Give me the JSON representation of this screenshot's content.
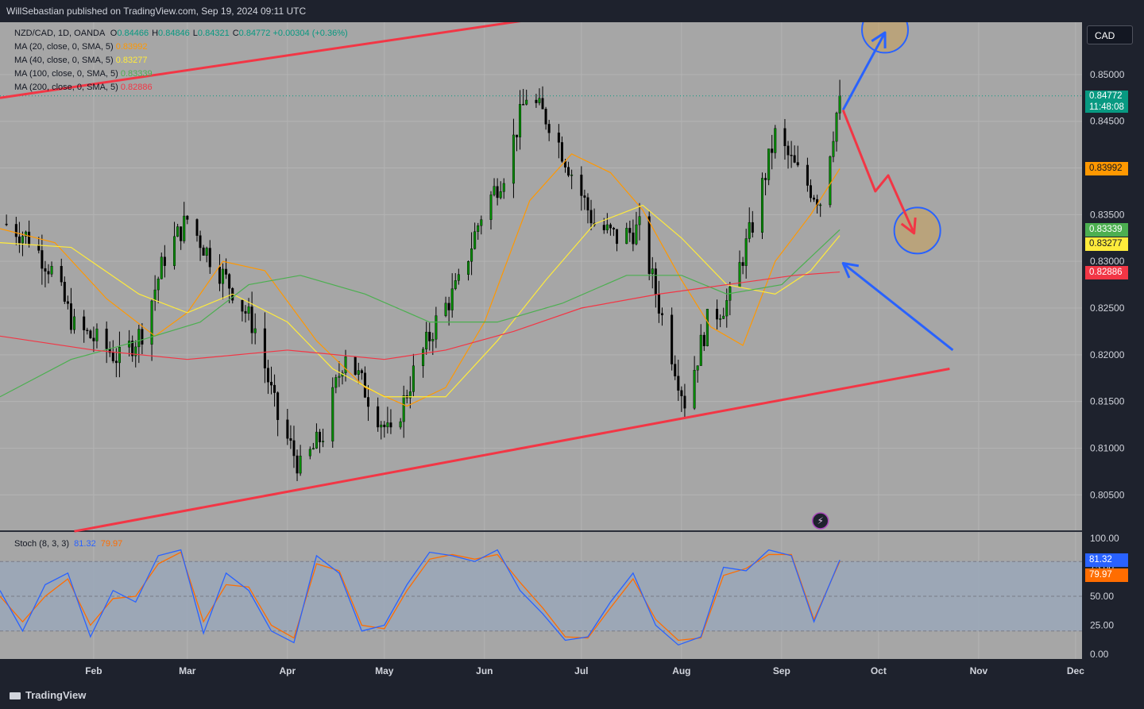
{
  "header": {
    "publisher": "WillSebastian published on TradingView.com, Sep 19, 2024 09:11 UTC"
  },
  "footer": {
    "brand": "TradingView"
  },
  "currency_button": "CAD",
  "legend": {
    "symbol": "NZD/CAD, 1D, OANDA",
    "ohlc": [
      {
        "k": "O",
        "v": "0.84466"
      },
      {
        "k": "H",
        "v": "0.84846"
      },
      {
        "k": "L",
        "v": "0.84321"
      },
      {
        "k": "C",
        "v": "0.84772"
      }
    ],
    "change": "+0.00304 (+0.36%)",
    "mas": [
      {
        "label": "MA (20, close, 0, SMA, 5)",
        "value": "0.83992",
        "color": "#ff9800"
      },
      {
        "label": "MA (40, close, 0, SMA, 5)",
        "value": "0.83277",
        "color": "#ffeb3b"
      },
      {
        "label": "MA (100, close, 0, SMA, 5)",
        "value": "0.83339",
        "color": "#4caf50"
      },
      {
        "label": "MA (200, close, 0, SMA, 5)",
        "value": "0.82886",
        "color": "#f23645"
      }
    ],
    "stoch": {
      "label": "Stoch (8, 3, 3)",
      "k": "81.32",
      "d": "79.97",
      "k_color": "#2962ff",
      "d_color": "#ff6d00"
    }
  },
  "price_tags": [
    {
      "text": "0.84772",
      "sub": "11:48:08",
      "value": 0.84772,
      "bg": "#089981",
      "fg": "#ffffff"
    },
    {
      "text": "0.83992",
      "value": 0.83992,
      "bg": "#ff9800",
      "fg": "#131722"
    },
    {
      "text": "0.83339",
      "value": 0.83339,
      "bg": "#4caf50",
      "fg": "#ffffff"
    },
    {
      "text": "0.83277",
      "value": 0.83277,
      "bg": "#ffeb3b",
      "fg": "#131722"
    },
    {
      "text": "0.82886",
      "value": 0.82886,
      "bg": "#f23645",
      "fg": "#ffffff"
    }
  ],
  "stoch_tags": [
    {
      "text": "81.32",
      "value": 81.32,
      "bg": "#2962ff",
      "fg": "#ffffff"
    },
    {
      "text": "79.97",
      "value": 79.97,
      "bg": "#ff6d00",
      "fg": "#ffffff"
    }
  ],
  "chart_data": {
    "type": "candlestick",
    "y_ticks": [
      "0.85000",
      "0.84500",
      "0.84000",
      "0.83500",
      "0.83000",
      "0.82500",
      "0.82000",
      "0.81500",
      "0.81000",
      "0.80500"
    ],
    "y_tick_values": [
      0.85,
      0.845,
      0.84,
      0.835,
      0.83,
      0.825,
      0.82,
      0.815,
      0.81,
      0.805
    ],
    "ylim": [
      0.8012,
      0.8556
    ],
    "x_ticks": [
      {
        "label": "Feb",
        "date": "2024-02-01"
      },
      {
        "label": "Mar",
        "date": "2024-03-01"
      },
      {
        "label": "Apr",
        "date": "2024-04-01"
      },
      {
        "label": "May",
        "date": "2024-05-01"
      },
      {
        "label": "Jun",
        "date": "2024-06-01"
      },
      {
        "label": "Jul",
        "date": "2024-07-01"
      },
      {
        "label": "Aug",
        "date": "2024-08-01"
      },
      {
        "label": "Sep",
        "date": "2024-09-01"
      },
      {
        "label": "Oct",
        "date": "2024-10-01"
      },
      {
        "label": "Nov",
        "date": "2024-11-01"
      },
      {
        "label": "Dec",
        "date": "2024-12-01"
      }
    ],
    "xlim": [
      "2024-01-03",
      "2024-12-03"
    ],
    "close_series": [
      {
        "date": "2024-01-05",
        "close": 0.834
      },
      {
        "date": "2024-01-12",
        "close": 0.8325
      },
      {
        "date": "2024-01-19",
        "close": 0.829
      },
      {
        "date": "2024-01-26",
        "close": 0.823
      },
      {
        "date": "2024-02-02",
        "close": 0.8215
      },
      {
        "date": "2024-02-09",
        "close": 0.8195
      },
      {
        "date": "2024-02-16",
        "close": 0.8225
      },
      {
        "date": "2024-02-23",
        "close": 0.8305
      },
      {
        "date": "2024-03-01",
        "close": 0.8345
      },
      {
        "date": "2024-03-08",
        "close": 0.8305
      },
      {
        "date": "2024-03-15",
        "close": 0.827
      },
      {
        "date": "2024-03-22",
        "close": 0.8228
      },
      {
        "date": "2024-03-29",
        "close": 0.8132
      },
      {
        "date": "2024-04-05",
        "close": 0.8078
      },
      {
        "date": "2024-04-12",
        "close": 0.8115
      },
      {
        "date": "2024-04-19",
        "close": 0.8205
      },
      {
        "date": "2024-04-26",
        "close": 0.8155
      },
      {
        "date": "2024-05-03",
        "close": 0.811
      },
      {
        "date": "2024-05-10",
        "close": 0.818
      },
      {
        "date": "2024-05-17",
        "close": 0.8235
      },
      {
        "date": "2024-05-24",
        "close": 0.8275
      },
      {
        "date": "2024-05-31",
        "close": 0.835
      },
      {
        "date": "2024-06-07",
        "close": 0.8395
      },
      {
        "date": "2024-06-14",
        "close": 0.8478
      },
      {
        "date": "2024-06-21",
        "close": 0.845
      },
      {
        "date": "2024-06-28",
        "close": 0.8395
      },
      {
        "date": "2024-07-05",
        "close": 0.834
      },
      {
        "date": "2024-07-12",
        "close": 0.8325
      },
      {
        "date": "2024-07-19",
        "close": 0.8335
      },
      {
        "date": "2024-07-26",
        "close": 0.824
      },
      {
        "date": "2024-08-02",
        "close": 0.815
      },
      {
        "date": "2024-08-09",
        "close": 0.8235
      },
      {
        "date": "2024-08-16",
        "close": 0.826
      },
      {
        "date": "2024-08-23",
        "close": 0.834
      },
      {
        "date": "2024-08-30",
        "close": 0.8435
      },
      {
        "date": "2024-09-06",
        "close": 0.8395
      },
      {
        "date": "2024-09-13",
        "close": 0.8365
      },
      {
        "date": "2024-09-19",
        "close": 0.84772
      }
    ],
    "ma_series": [
      {
        "name": "MA (20, close, 0, SMA, 5)",
        "color": "#ff9800",
        "points": [
          [
            "2024-01-03",
            0.8335
          ],
          [
            "2024-01-20",
            0.832
          ],
          [
            "2024-02-05",
            0.826
          ],
          [
            "2024-02-20",
            0.822
          ],
          [
            "2024-03-01",
            0.8245
          ],
          [
            "2024-03-12",
            0.83
          ],
          [
            "2024-03-25",
            0.829
          ],
          [
            "2024-04-10",
            0.8215
          ],
          [
            "2024-04-25",
            0.8165
          ],
          [
            "2024-05-08",
            0.8145
          ],
          [
            "2024-05-20",
            0.8165
          ],
          [
            "2024-06-01",
            0.8235
          ],
          [
            "2024-06-15",
            0.8365
          ],
          [
            "2024-06-28",
            0.8415
          ],
          [
            "2024-07-10",
            0.8395
          ],
          [
            "2024-07-20",
            0.8355
          ],
          [
            "2024-08-01",
            0.828
          ],
          [
            "2024-08-10",
            0.823
          ],
          [
            "2024-08-20",
            0.821
          ],
          [
            "2024-08-30",
            0.83
          ],
          [
            "2024-09-10",
            0.835
          ],
          [
            "2024-09-19",
            0.83992
          ]
        ]
      },
      {
        "name": "MA (40, close, 0, SMA, 5)",
        "color": "#ffeb3b",
        "points": [
          [
            "2024-01-03",
            0.832
          ],
          [
            "2024-01-25",
            0.8315
          ],
          [
            "2024-02-15",
            0.8265
          ],
          [
            "2024-03-01",
            0.8245
          ],
          [
            "2024-03-15",
            0.8265
          ],
          [
            "2024-04-01",
            0.8235
          ],
          [
            "2024-04-15",
            0.8185
          ],
          [
            "2024-05-01",
            0.8155
          ],
          [
            "2024-05-20",
            0.8155
          ],
          [
            "2024-06-05",
            0.8215
          ],
          [
            "2024-06-20",
            0.828
          ],
          [
            "2024-07-05",
            0.834
          ],
          [
            "2024-07-20",
            0.836
          ],
          [
            "2024-08-01",
            0.8325
          ],
          [
            "2024-08-15",
            0.8275
          ],
          [
            "2024-08-30",
            0.8265
          ],
          [
            "2024-09-10",
            0.829
          ],
          [
            "2024-09-19",
            0.83277
          ]
        ]
      },
      {
        "name": "MA (100, close, 0, SMA, 5)",
        "color": "#4caf50",
        "points": [
          [
            "2024-01-03",
            0.8155
          ],
          [
            "2024-01-25",
            0.8195
          ],
          [
            "2024-02-15",
            0.8215
          ],
          [
            "2024-03-05",
            0.8235
          ],
          [
            "2024-03-20",
            0.8275
          ],
          [
            "2024-04-05",
            0.8285
          ],
          [
            "2024-04-25",
            0.8265
          ],
          [
            "2024-05-15",
            0.8235
          ],
          [
            "2024-06-05",
            0.8235
          ],
          [
            "2024-06-25",
            0.8255
          ],
          [
            "2024-07-15",
            0.8285
          ],
          [
            "2024-08-01",
            0.8285
          ],
          [
            "2024-08-15",
            0.8265
          ],
          [
            "2024-09-01",
            0.8275
          ],
          [
            "2024-09-19",
            0.83339
          ]
        ]
      },
      {
        "name": "MA (200, close, 0, SMA, 5)",
        "color": "#f23645",
        "points": [
          [
            "2024-01-03",
            0.822
          ],
          [
            "2024-02-01",
            0.8205
          ],
          [
            "2024-03-01",
            0.8195
          ],
          [
            "2024-04-01",
            0.8205
          ],
          [
            "2024-05-01",
            0.8195
          ],
          [
            "2024-05-20",
            0.8205
          ],
          [
            "2024-06-10",
            0.8225
          ],
          [
            "2024-07-01",
            0.825
          ],
          [
            "2024-07-25",
            0.8265
          ],
          [
            "2024-08-15",
            0.8275
          ],
          [
            "2024-09-05",
            0.8285
          ],
          [
            "2024-09-19",
            0.82886
          ]
        ]
      }
    ],
    "drawings": {
      "channel_upper": [
        [
          "2024-01-03",
          0.8475
        ],
        [
          "2024-10-23",
          0.8625
        ]
      ],
      "channel_lower": [
        [
          "2024-01-26",
          0.8011
        ],
        [
          "2024-10-23",
          0.8185
        ]
      ],
      "blue_arrow_up": [
        [
          "2024-09-20",
          0.8462
        ],
        [
          "2024-10-03",
          0.8545
        ]
      ],
      "blue_arrow_diag": [
        [
          "2024-10-24",
          0.8205
        ],
        [
          "2024-09-20",
          0.8298
        ]
      ],
      "red_path": [
        [
          "2024-09-20",
          0.8462
        ],
        [
          "2024-09-30",
          0.8375
        ],
        [
          "2024-10-04",
          0.8392
        ],
        [
          "2024-10-12",
          0.833
        ]
      ],
      "circle_top": [
        "2024-10-03",
        0.8548
      ],
      "circle_mid": [
        "2024-10-13",
        0.8333
      ],
      "dotted_last_close": 0.84772
    },
    "stoch": {
      "ylim": [
        0,
        100
      ],
      "y_ticks": [
        "100.00",
        "75.00",
        "50.00",
        "25.00",
        "0.00"
      ],
      "y_tick_values": [
        100,
        75,
        50,
        25,
        0
      ],
      "band": [
        20,
        80
      ],
      "k": [
        [
          "2024-01-03",
          55
        ],
        [
          "2024-01-10",
          20
        ],
        [
          "2024-01-17",
          60
        ],
        [
          "2024-01-24",
          70
        ],
        [
          "2024-01-31",
          15
        ],
        [
          "2024-02-07",
          55
        ],
        [
          "2024-02-14",
          45
        ],
        [
          "2024-02-21",
          85
        ],
        [
          "2024-02-28",
          90
        ],
        [
          "2024-03-06",
          18
        ],
        [
          "2024-03-13",
          70
        ],
        [
          "2024-03-20",
          55
        ],
        [
          "2024-03-27",
          20
        ],
        [
          "2024-04-03",
          10
        ],
        [
          "2024-04-10",
          85
        ],
        [
          "2024-04-17",
          70
        ],
        [
          "2024-04-24",
          20
        ],
        [
          "2024-05-01",
          25
        ],
        [
          "2024-05-08",
          60
        ],
        [
          "2024-05-15",
          88
        ],
        [
          "2024-05-22",
          85
        ],
        [
          "2024-05-29",
          80
        ],
        [
          "2024-06-05",
          90
        ],
        [
          "2024-06-12",
          55
        ],
        [
          "2024-06-19",
          35
        ],
        [
          "2024-06-26",
          12
        ],
        [
          "2024-07-03",
          15
        ],
        [
          "2024-07-10",
          45
        ],
        [
          "2024-07-17",
          70
        ],
        [
          "2024-07-24",
          25
        ],
        [
          "2024-07-31",
          8
        ],
        [
          "2024-08-07",
          15
        ],
        [
          "2024-08-14",
          75
        ],
        [
          "2024-08-21",
          72
        ],
        [
          "2024-08-28",
          90
        ],
        [
          "2024-09-04",
          85
        ],
        [
          "2024-09-11",
          28
        ],
        [
          "2024-09-19",
          81.32
        ]
      ],
      "d": [
        [
          "2024-01-03",
          50
        ],
        [
          "2024-01-10",
          28
        ],
        [
          "2024-01-17",
          50
        ],
        [
          "2024-01-24",
          65
        ],
        [
          "2024-01-31",
          25
        ],
        [
          "2024-02-07",
          48
        ],
        [
          "2024-02-14",
          50
        ],
        [
          "2024-02-21",
          78
        ],
        [
          "2024-02-28",
          88
        ],
        [
          "2024-03-06",
          28
        ],
        [
          "2024-03-13",
          60
        ],
        [
          "2024-03-20",
          58
        ],
        [
          "2024-03-27",
          25
        ],
        [
          "2024-04-03",
          14
        ],
        [
          "2024-04-10",
          78
        ],
        [
          "2024-04-17",
          72
        ],
        [
          "2024-04-24",
          25
        ],
        [
          "2024-05-01",
          22
        ],
        [
          "2024-05-08",
          55
        ],
        [
          "2024-05-15",
          82
        ],
        [
          "2024-05-22",
          86
        ],
        [
          "2024-05-29",
          82
        ],
        [
          "2024-06-05",
          86
        ],
        [
          "2024-06-12",
          62
        ],
        [
          "2024-06-19",
          40
        ],
        [
          "2024-06-26",
          15
        ],
        [
          "2024-07-03",
          14
        ],
        [
          "2024-07-10",
          40
        ],
        [
          "2024-07-17",
          65
        ],
        [
          "2024-07-24",
          30
        ],
        [
          "2024-07-31",
          12
        ],
        [
          "2024-08-07",
          14
        ],
        [
          "2024-08-14",
          68
        ],
        [
          "2024-08-21",
          74
        ],
        [
          "2024-08-28",
          86
        ],
        [
          "2024-09-04",
          86
        ],
        [
          "2024-09-11",
          30
        ],
        [
          "2024-09-19",
          79.97
        ]
      ]
    }
  }
}
